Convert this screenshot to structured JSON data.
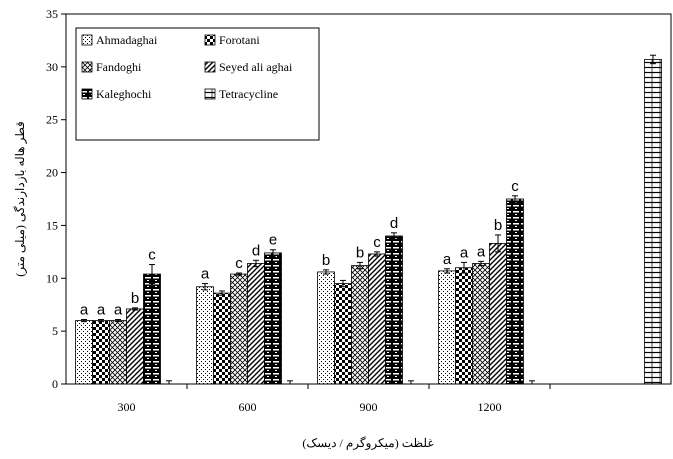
{
  "chart_data": {
    "type": "bar",
    "title": "",
    "xlabel": "غلظت (میکروگرم / دیسک)",
    "ylabel": "قطر هاله بازدارندگی (میلی متر)",
    "ylim": [
      0,
      35
    ],
    "yticks": [
      0,
      5,
      10,
      15,
      20,
      25,
      30,
      35
    ],
    "grid": false,
    "legend_position": "top-left",
    "categories": [
      "300",
      "600",
      "900",
      "1200",
      ""
    ],
    "series": [
      {
        "name": "Ahmadaghai",
        "values": [
          6,
          9.2,
          10.6,
          10.7,
          null
        ],
        "errors": [
          0.1,
          0.3,
          0.2,
          0.2,
          null
        ],
        "labels": [
          "a",
          "a",
          "b",
          "a",
          ""
        ],
        "pattern": "dots",
        "legend_col": 0
      },
      {
        "name": "Forotani",
        "values": [
          6,
          8.6,
          9.5,
          11,
          null
        ],
        "errors": [
          0.1,
          0.2,
          0.3,
          0.5,
          null
        ],
        "labels": [
          "a",
          "",
          "",
          "a",
          ""
        ],
        "pattern": "checker",
        "legend_col": 1
      },
      {
        "name": "Fandoghi",
        "values": [
          6,
          10.4,
          11.2,
          11.4,
          null
        ],
        "errors": [
          0.1,
          0.1,
          0.3,
          0.2,
          null
        ],
        "labels": [
          "a",
          "c",
          "b",
          "a",
          ""
        ],
        "pattern": "cross",
        "legend_col": 0
      },
      {
        "name": "Seyed ali aghai",
        "values": [
          7.1,
          11.4,
          12.3,
          13.3,
          null
        ],
        "errors": [
          0.1,
          0.3,
          0.2,
          0.8,
          null
        ],
        "labels": [
          "b",
          "d",
          "c",
          "b",
          ""
        ],
        "pattern": "diag",
        "legend_col": 1
      },
      {
        "name": "Kaleghochi",
        "values": [
          10.4,
          12.4,
          14,
          17.5,
          null
        ],
        "errors": [
          0.9,
          0.3,
          0.3,
          0.3,
          null
        ],
        "labels": [
          "c",
          "e",
          "d",
          "c",
          ""
        ],
        "pattern": "bricks",
        "legend_col": 0
      },
      {
        "name": "Tetracycline",
        "values": [
          0,
          0,
          0,
          0,
          30.7
        ],
        "errors": [
          0.3,
          0.3,
          0.3,
          0.3,
          0.4
        ],
        "labels": [
          "",
          "",
          "",
          "",
          ""
        ],
        "pattern": "ladder",
        "legend_col": 1
      }
    ]
  }
}
